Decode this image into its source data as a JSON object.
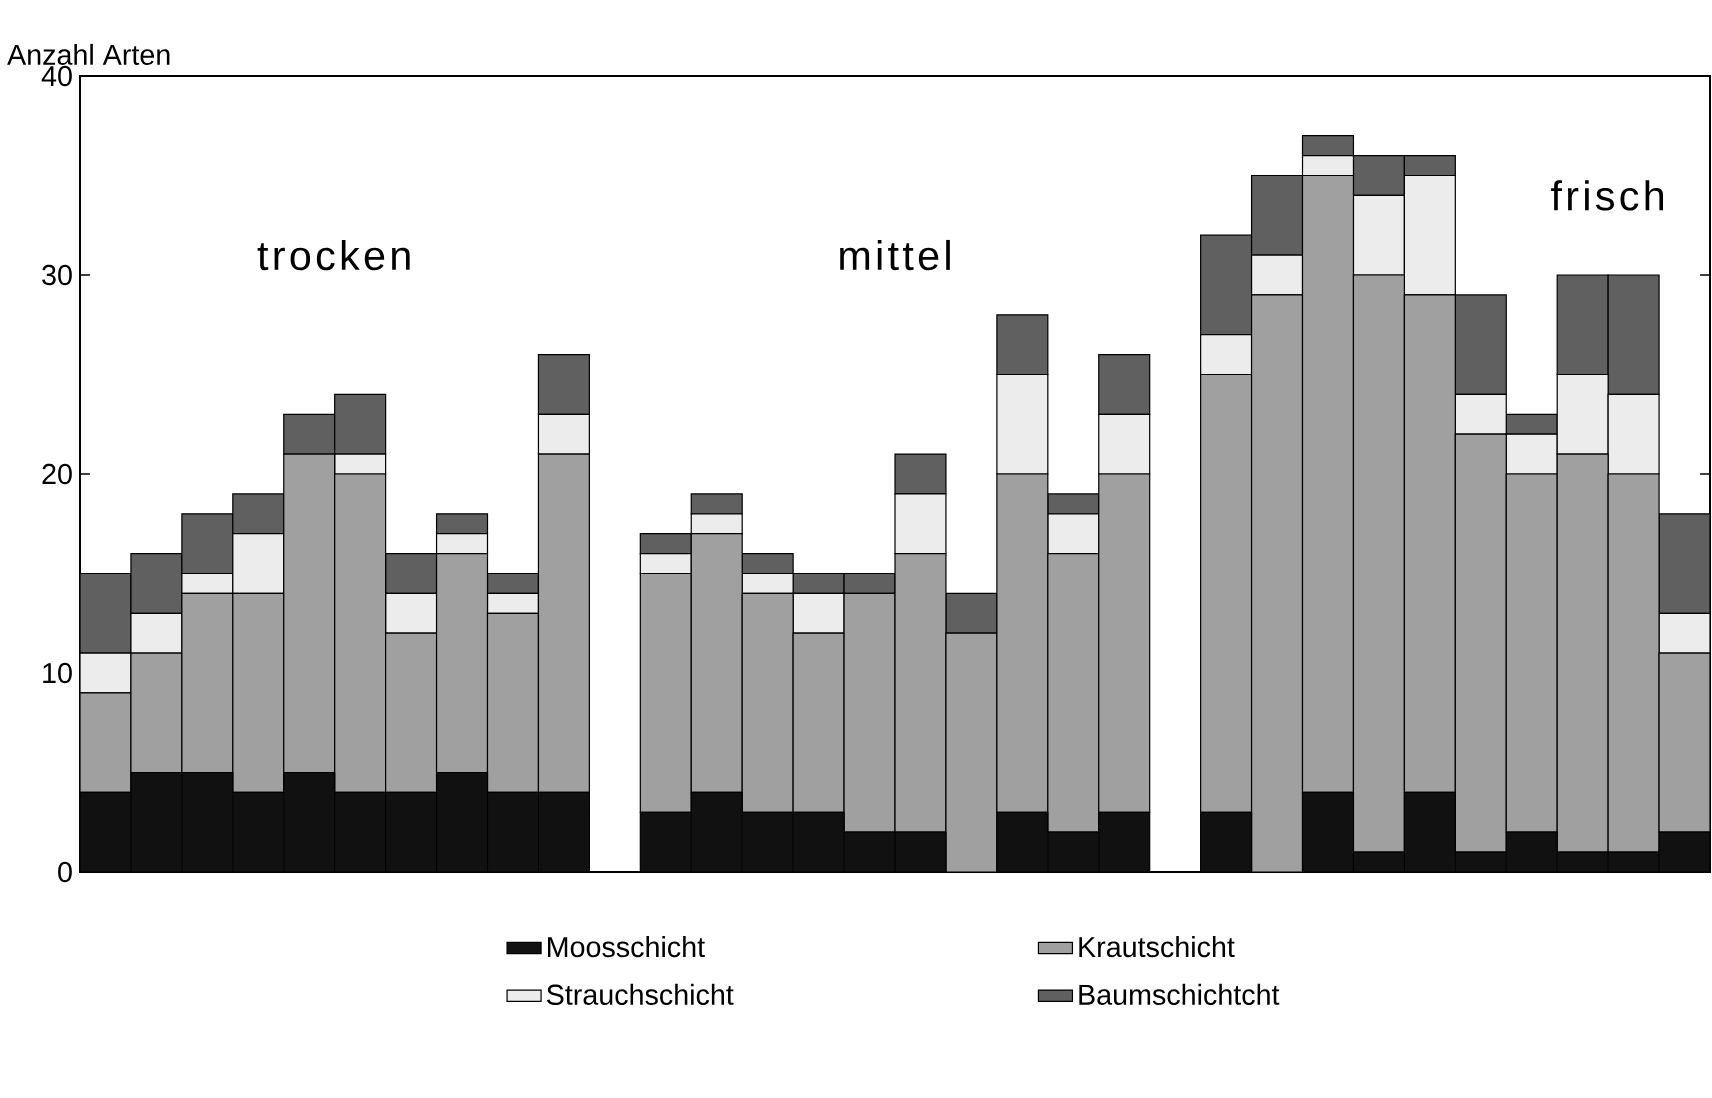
{
  "chart_data": {
    "type": "bar",
    "stacked": true,
    "ylabel": "Anzahl Arten",
    "categories": [
      null,
      null,
      null,
      null,
      null,
      null,
      null,
      null,
      null,
      null,
      null,
      null,
      null,
      null,
      null,
      null,
      null,
      null,
      null,
      null,
      null,
      null,
      null,
      null,
      null,
      null,
      null,
      null,
      null,
      null
    ],
    "series": [
      {
        "name": "Moosschicht",
        "color": "#111111",
        "values": [
          4,
          5,
          5,
          4,
          5,
          4,
          4,
          5,
          4,
          4,
          3,
          4,
          3,
          3,
          2,
          2,
          0,
          3,
          2,
          3,
          3,
          0,
          4,
          1,
          4,
          1,
          2,
          1,
          1,
          2
        ]
      },
      {
        "name": "Krautschicht",
        "color": "#a0a0a0",
        "values": [
          5,
          6,
          9,
          10,
          16,
          16,
          8,
          11,
          9,
          17,
          12,
          13,
          11,
          9,
          12,
          14,
          12,
          17,
          14,
          17,
          22,
          29,
          31,
          29,
          25,
          21,
          18,
          20,
          19,
          9
        ]
      },
      {
        "name": "Strauchschicht",
        "color": "#ececec",
        "values": [
          2,
          2,
          1,
          3,
          0,
          1,
          2,
          1,
          1,
          2,
          1,
          1,
          1,
          2,
          0,
          3,
          0,
          5,
          2,
          3,
          2,
          2,
          1,
          4,
          6,
          2,
          2,
          4,
          4,
          2
        ]
      },
      {
        "name": "Baumschichtcht",
        "color": "#606060",
        "values": [
          4,
          3,
          3,
          2,
          2,
          3,
          2,
          1,
          1,
          3,
          1,
          1,
          1,
          1,
          1,
          2,
          2,
          3,
          1,
          3,
          5,
          4,
          1,
          2,
          1,
          5,
          1,
          5,
          6,
          5
        ]
      }
    ],
    "annotations": [
      "trocken",
      "mittel",
      "frisch"
    ],
    "ylim": [
      0,
      40
    ],
    "yticks": [
      0,
      10,
      20,
      30,
      40
    ],
    "tick_labels": "y",
    "legend": "bottom"
  }
}
